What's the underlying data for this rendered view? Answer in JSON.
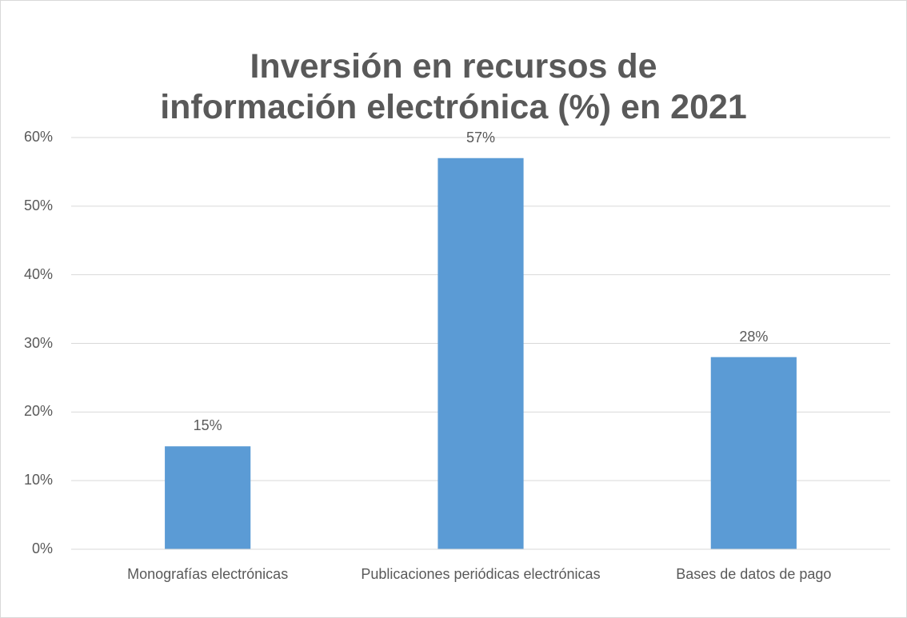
{
  "chart_data": {
    "type": "bar",
    "title": "Inversión en recursos de información electrónica (%) en 2021",
    "categories": [
      "Monografías electrónicas",
      "Publicaciones periódicas electrónicas",
      "Bases de datos de pago"
    ],
    "values": [
      15,
      57,
      28
    ],
    "value_labels": [
      "15%",
      "57%",
      "28%"
    ],
    "color": "#5b9bd5",
    "ylim": [
      0,
      60
    ],
    "yticks": [
      {
        "value": 0,
        "label": "0%"
      },
      {
        "value": 10,
        "label": "10%"
      },
      {
        "value": 20,
        "label": "20%"
      },
      {
        "value": 30,
        "label": "30%"
      },
      {
        "value": 40,
        "label": "40%"
      },
      {
        "value": 50,
        "label": "50%"
      },
      {
        "value": 60,
        "label": "60%"
      }
    ],
    "grid": true
  }
}
